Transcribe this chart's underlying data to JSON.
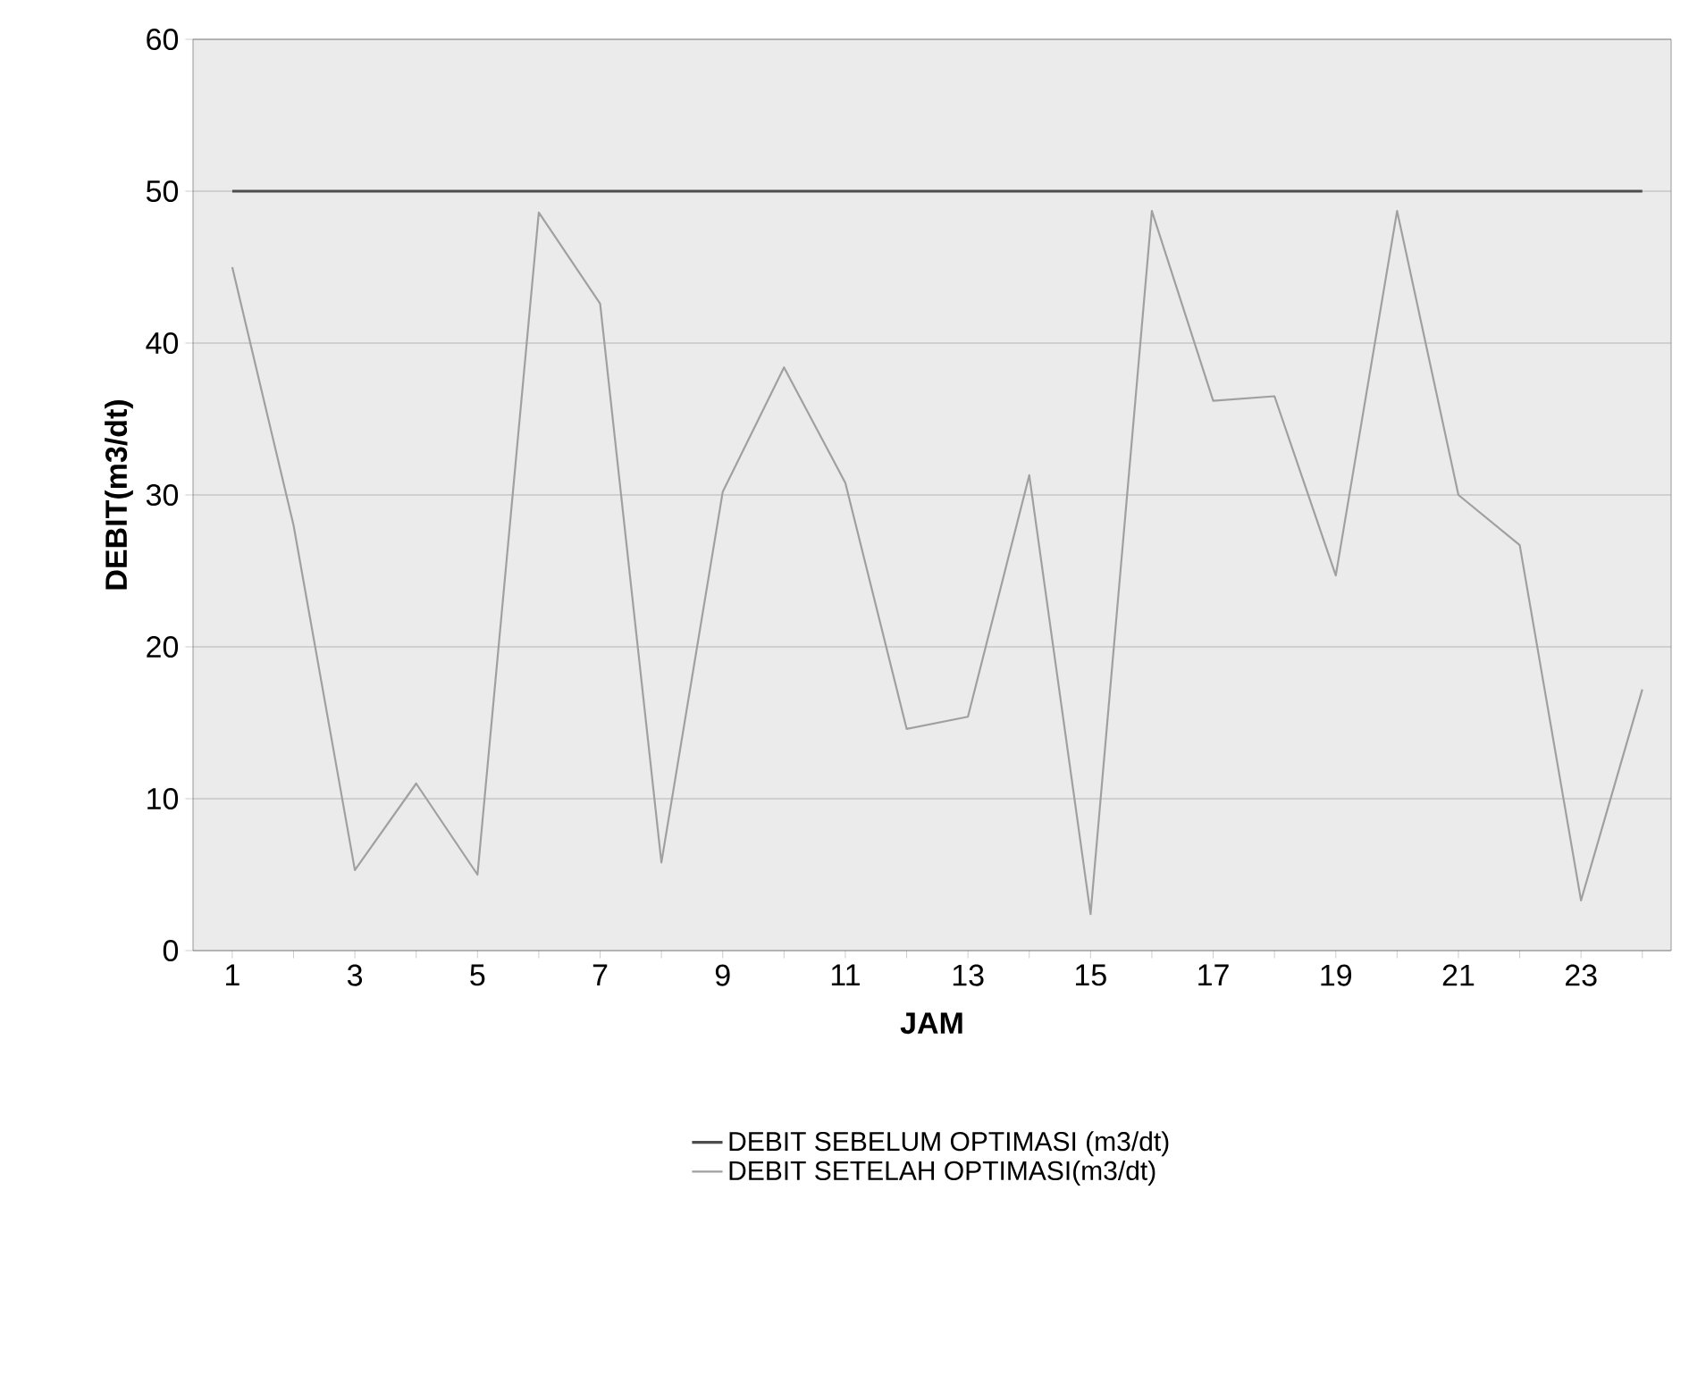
{
  "chart_data": {
    "type": "line",
    "xlabel": "JAM",
    "ylabel": "DEBIT(m3/dt)",
    "categories": [
      "1",
      null,
      "3",
      null,
      "5",
      null,
      "7",
      null,
      "9",
      null,
      "11",
      null,
      "13",
      null,
      "15",
      null,
      "17",
      null,
      "19",
      null,
      "21",
      null,
      "23",
      null
    ],
    "series": [
      {
        "name": "DEBIT SEBELUM OPTIMASI (m3/dt)",
        "color": "#4d4d4d",
        "values": [
          50,
          50,
          50,
          50,
          50,
          50,
          50,
          50,
          50,
          50,
          50,
          50,
          50,
          50,
          50,
          50,
          50,
          50,
          50,
          50,
          50,
          50,
          50,
          50
        ]
      },
      {
        "name": "DEBIT SETELAH OPTIMASI(m3/dt)",
        "color": "#a0a0a0",
        "values": [
          45,
          28,
          5.3,
          11,
          5,
          48.6,
          42.6,
          5.8,
          30.2,
          38.4,
          30.8,
          14.6,
          15.4,
          31.3,
          2.4,
          48.7,
          36.2,
          36.5,
          24.7,
          48.7,
          30,
          26.7,
          3.3,
          17.2
        ]
      }
    ],
    "ylim": [
      0,
      60
    ],
    "yticks": [
      0,
      10,
      20,
      30,
      40,
      50,
      60
    ],
    "grid": "y",
    "legend": "bottom",
    "marker": "none",
    "line_style": "solid"
  }
}
